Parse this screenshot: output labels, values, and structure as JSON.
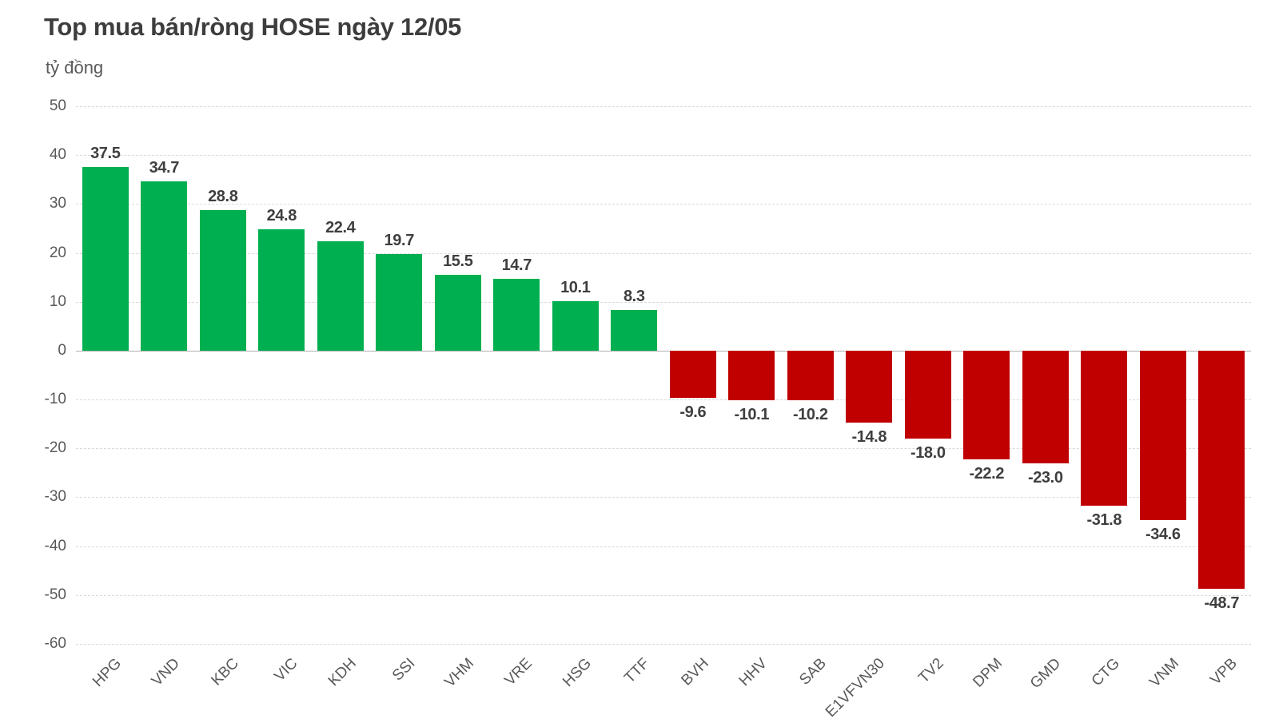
{
  "header": {
    "title": "Top mua bán/ròng HOSE ngày 12/05",
    "unit_label": "tỷ đồng"
  },
  "chart_data": {
    "type": "bar",
    "title": "Top mua bán/ròng HOSE ngày 12/05",
    "ylabel": "tỷ đồng",
    "xlabel": "",
    "categories": [
      "HPG",
      "VND",
      "KBC",
      "VIC",
      "KDH",
      "SSI",
      "VHM",
      "VRE",
      "HSG",
      "TTF",
      "BVH",
      "HHV",
      "SAB",
      "E1VFVN30",
      "TV2",
      "DPM",
      "GMD",
      "CTG",
      "VNM",
      "VPB"
    ],
    "values": [
      37.5,
      34.7,
      28.8,
      24.8,
      22.4,
      19.7,
      15.5,
      14.7,
      10.1,
      8.3,
      -9.6,
      -10.1,
      -10.2,
      -14.8,
      -18.0,
      -22.2,
      -23.0,
      -31.8,
      -34.6,
      -48.7
    ],
    "value_labels": [
      "37.5",
      "34.7",
      "28.8",
      "24.8",
      "22.4",
      "19.7",
      "15.5",
      "14.7",
      "10.1",
      "8.3",
      "-9.6",
      "-10.1",
      "-10.2",
      "-14.8",
      "-18.0",
      "-22.2",
      "-23.0",
      "-31.8",
      "-34.6",
      "-48.7"
    ],
    "ylim": [
      -60,
      50
    ],
    "yticks": [
      50,
      40,
      30,
      20,
      10,
      0,
      -10,
      -20,
      -30,
      -40,
      -50,
      -60
    ],
    "grid": true,
    "legend": null,
    "colors": {
      "positive": "#00B050",
      "negative": "#C00000"
    }
  }
}
